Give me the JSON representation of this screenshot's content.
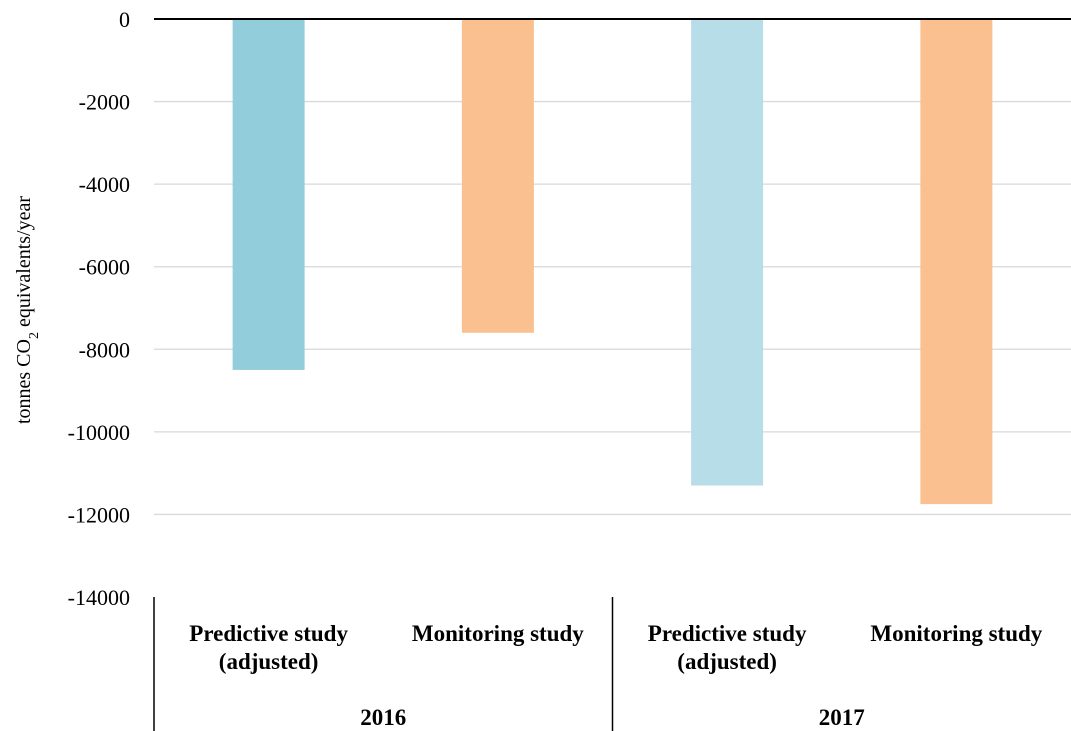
{
  "chart_data": {
    "type": "bar",
    "title": "",
    "ylabel": {
      "prefix": "tonnes CO",
      "subscript": "2",
      "suffix": " equivalents/year"
    },
    "ylim": [
      -14000,
      0
    ],
    "yticks": [
      0,
      -2000,
      -4000,
      -6000,
      -8000,
      -10000,
      -12000,
      -14000
    ],
    "grid": true,
    "groups": [
      {
        "label": "2016",
        "bars": [
          {
            "label": [
              "Predictive study",
              "(adjusted)"
            ],
            "value": -8500,
            "color": "#92cddc"
          },
          {
            "label": [
              "Monitoring study"
            ],
            "value": -7600,
            "color": "#fac090"
          }
        ]
      },
      {
        "label": "2017",
        "bars": [
          {
            "label": [
              "Predictive study",
              "(adjusted)"
            ],
            "value": -11300,
            "color": "#b7dde8"
          },
          {
            "label": [
              "Monitoring study"
            ],
            "value": -11750,
            "color": "#fac090"
          }
        ]
      }
    ]
  }
}
